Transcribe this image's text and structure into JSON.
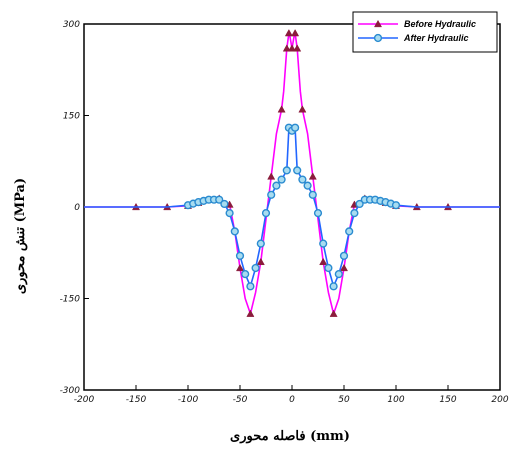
{
  "chart_data": {
    "type": "line",
    "title": "",
    "xlabel": "فاصله محوری (mm)",
    "ylabel": "تنش محوری (MPa)",
    "xlim": [
      -200,
      200
    ],
    "ylim": [
      -300,
      300
    ],
    "xticks": [
      -200,
      -150,
      -100,
      -50,
      0,
      50,
      100,
      150,
      200
    ],
    "yticks": [
      -300,
      -150,
      0,
      150,
      300
    ],
    "xtick_labels": [
      "-200",
      "-150",
      "-100",
      "-50",
      "0",
      "50",
      "100",
      "150",
      "200"
    ],
    "ytick_labels": [
      "-300",
      "-150",
      "0",
      "150",
      "300"
    ],
    "grid": false,
    "legend_position": "top-right",
    "series": [
      {
        "name": "Before Hydraulic",
        "color": "#ff00ff",
        "marker_color": "#8b1c3c",
        "marker": "triangle",
        "x": [
          -200,
          -150,
          -120,
          -100,
          -90,
          -80,
          -70,
          -60,
          -55,
          -50,
          -45,
          -40,
          -35,
          -30,
          -25,
          -20,
          -15,
          -10,
          -8,
          -5,
          -3,
          -2,
          0,
          2,
          3,
          5,
          8,
          10,
          15,
          20,
          25,
          30,
          35,
          40,
          45,
          50,
          55,
          60,
          70,
          80,
          90,
          100,
          120,
          150,
          200
        ],
        "y": [
          0,
          0,
          0,
          2,
          7,
          12,
          14,
          4,
          -40,
          -100,
          -150,
          -175,
          -140,
          -90,
          -20,
          50,
          120,
          160,
          190,
          260,
          285,
          280,
          260,
          280,
          285,
          260,
          190,
          160,
          120,
          50,
          -20,
          -90,
          -140,
          -175,
          -150,
          -100,
          -40,
          4,
          14,
          12,
          7,
          2,
          0,
          0,
          0
        ],
        "marker_x": [
          -150,
          -120,
          -100,
          -90,
          -80,
          -70,
          -60,
          -50,
          -40,
          -30,
          -20,
          -10,
          -5,
          -3,
          0,
          3,
          5,
          10,
          20,
          30,
          40,
          50,
          60,
          70,
          80,
          90,
          100,
          120,
          150
        ]
      },
      {
        "name": "After Hydraulic",
        "color": "#2266ff",
        "marker_color": "#2a8bd0",
        "marker": "circle",
        "x": [
          -200,
          -120,
          -100,
          -90,
          -80,
          -70,
          -65,
          -60,
          -55,
          -50,
          -45,
          -40,
          -35,
          -30,
          -25,
          -20,
          -15,
          -10,
          -5,
          -3,
          -2,
          0,
          2,
          3,
          5,
          10,
          15,
          20,
          25,
          30,
          35,
          40,
          45,
          50,
          55,
          60,
          65,
          70,
          80,
          90,
          100,
          120,
          200
        ],
        "y": [
          0,
          0,
          3,
          8,
          12,
          12,
          5,
          -10,
          -40,
          -80,
          -110,
          -130,
          -100,
          -60,
          -10,
          20,
          35,
          45,
          60,
          130,
          135,
          125,
          135,
          130,
          60,
          45,
          35,
          20,
          -10,
          -60,
          -100,
          -130,
          -110,
          -80,
          -40,
          -10,
          5,
          12,
          12,
          8,
          3,
          0,
          0
        ],
        "marker_x": [
          -100,
          -95,
          -90,
          -85,
          -80,
          -75,
          -70,
          -65,
          -60,
          -55,
          -50,
          -45,
          -40,
          -35,
          -30,
          -25,
          -20,
          -15,
          -10,
          -5,
          -3,
          0,
          3,
          5,
          10,
          15,
          20,
          25,
          30,
          35,
          40,
          45,
          50,
          55,
          60,
          65,
          70,
          75,
          80,
          85,
          90,
          95,
          100
        ]
      }
    ]
  }
}
